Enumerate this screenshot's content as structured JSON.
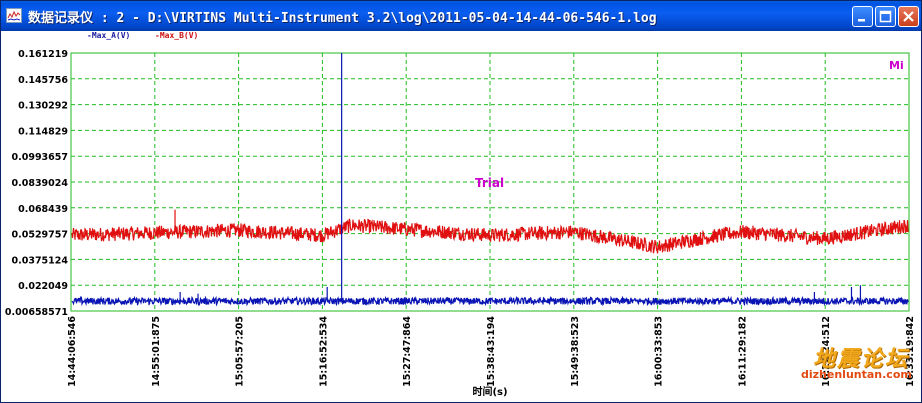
{
  "window": {
    "title": "数据记录仪 : 2 - D:\\VIRTINS Multi-Instrument 3.2\\log\\2011-05-04-14-44-06-546-1.log",
    "icon": "chart-app-icon",
    "buttons": [
      "minimize-icon",
      "maximize-icon",
      "close-icon"
    ]
  },
  "watermark": {
    "text": "地震论坛",
    "url": "dizhenluntan.com"
  },
  "chart_data": {
    "type": "line",
    "legend_placement": "top-left",
    "grid": true,
    "grid_style": "dashed",
    "grid_color": "#22bb22",
    "background": "#ffffff",
    "annotations": [
      "Trial",
      "Mi"
    ],
    "annotation_color": "#cc00cc",
    "xlabel": "时间(s)",
    "ylabel": "",
    "ylim": [
      0.00658571,
      0.161219
    ],
    "yticks": [
      "0.161219",
      "0.145756",
      "0.130292",
      "0.114829",
      "0.0993657",
      "0.0839024",
      "0.068439",
      "0.0529757",
      "0.0375124",
      "0.022049",
      "0.00658571"
    ],
    "xticks": [
      "14:44:06:546",
      "14:55:01:875",
      "15:05:57:205",
      "15:16:52:534",
      "15:27:47:864",
      "15:38:43:194",
      "15:49:38:523",
      "16:00:33:853",
      "16:11:29:182",
      "16:22:24:512",
      "16:33:19:842"
    ],
    "series": [
      {
        "name": "-Max_A(V)",
        "color": "#0a14b4",
        "baseline": 0.0125,
        "spikes": [
          {
            "t": "14:58:20",
            "value": 0.018
          },
          {
            "t": "15:00:40",
            "value": 0.017
          },
          {
            "t": "15:17:30",
            "value": 0.021
          },
          {
            "t": "15:19:23",
            "value": 0.161219
          },
          {
            "t": "16:25:50",
            "value": 0.021
          },
          {
            "t": "16:27:00",
            "value": 0.022
          },
          {
            "t": "16:21:00",
            "value": 0.018
          }
        ]
      },
      {
        "name": "-Max_B(V)",
        "color": "#e01010",
        "profile": [
          {
            "t": "14:44:06",
            "value": 0.052
          },
          {
            "t": "15:05:57",
            "value": 0.055
          },
          {
            "t": "15:16:52",
            "value": 0.052
          },
          {
            "t": "15:20:40",
            "value": 0.058
          },
          {
            "t": "15:38:43",
            "value": 0.052
          },
          {
            "t": "15:49:38",
            "value": 0.054
          },
          {
            "t": "16:00:33",
            "value": 0.045
          },
          {
            "t": "16:06:00",
            "value": 0.05
          },
          {
            "t": "16:11:29",
            "value": 0.054
          },
          {
            "t": "16:22:24",
            "value": 0.05
          },
          {
            "t": "16:33:19",
            "value": 0.058
          }
        ],
        "spikes": [
          {
            "t": "14:57:40",
            "value": 0.0673
          }
        ]
      }
    ]
  }
}
